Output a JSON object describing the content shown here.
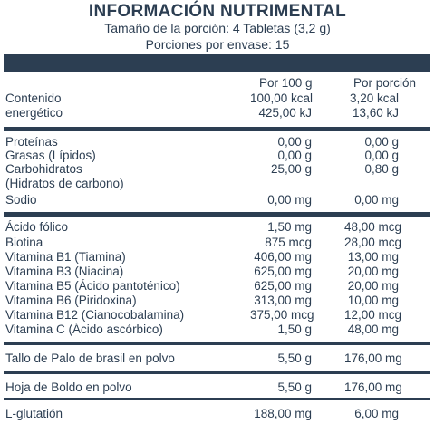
{
  "header": {
    "title": "INFORMACIÓN NUTRIMENTAL",
    "serving_size": "Tamaño de la porción: 4 Tabletas (3,2 g)",
    "servings": "Porciones por envase: 15"
  },
  "columns": {
    "per100": "Por 100 g",
    "perserving": "Por porción"
  },
  "energy": {
    "label1": "Contenido",
    "label2": "energético",
    "kcal100": "100,00 kcal",
    "kj100": "425,00 kJ",
    "kcalserv": "3,20 kcal",
    "kjserv": "13,60 kJ"
  },
  "macros": [
    {
      "label": "Proteínas",
      "per100": "0,00 g",
      "perserving": "0,00 g"
    },
    {
      "label": "Grasas (Lípidos)",
      "per100": "0,00 g",
      "perserving": "0,00 g"
    },
    {
      "label": "Carbohidratos",
      "per100": "25,00 g",
      "perserving": "0,80 g"
    },
    {
      "label": "(Hidratos de carbono)",
      "per100": "",
      "perserving": ""
    },
    {
      "label": "Sodio",
      "per100": "0,00 mg",
      "perserving": "0,00 mg"
    }
  ],
  "vitamins": [
    {
      "label": "Ácido fólico",
      "per100": "1,50 mg",
      "perserving": "48,00 mcg"
    },
    {
      "label": "Biotina",
      "per100": "875 mcg",
      "perserving": "28,00 mcg"
    },
    {
      "label": "Vitamina B1 (Tiamina)",
      "per100": "406,00 mg",
      "perserving": "13,00 mg"
    },
    {
      "label": "Vitamina B3 (Niacina)",
      "per100": "625,00 mg",
      "perserving": "20,00 mg"
    },
    {
      "label": "Vitamina B5 (Ácido pantoténico)",
      "per100": "625,00 mg",
      "perserving": "20,00 mg"
    },
    {
      "label": "Vitamina B6 (Piridoxina)",
      "per100": "313,00 mg",
      "perserving": "10,00 mg"
    },
    {
      "label": "Vitamina B12 (Cianocobalamina)",
      "per100": "375,00 mcg",
      "perserving": "12,00 mcg"
    },
    {
      "label": "Vitamina C (Ácido ascórbico)",
      "per100": "1,50 g",
      "perserving": "48,00 mg"
    }
  ],
  "extras": [
    {
      "label": "Tallo de Palo de brasil en polvo",
      "per100": "5,50 g",
      "perserving": "176,00 mg"
    },
    {
      "label": "Hoja de Boldo en polvo",
      "per100": "5,50 g",
      "perserving": "176,00 mg"
    },
    {
      "label": "L-glutatión",
      "per100": "188,00 mg",
      "perserving": "6,00 mg"
    }
  ],
  "colors": {
    "ink": "#2c3e52"
  }
}
